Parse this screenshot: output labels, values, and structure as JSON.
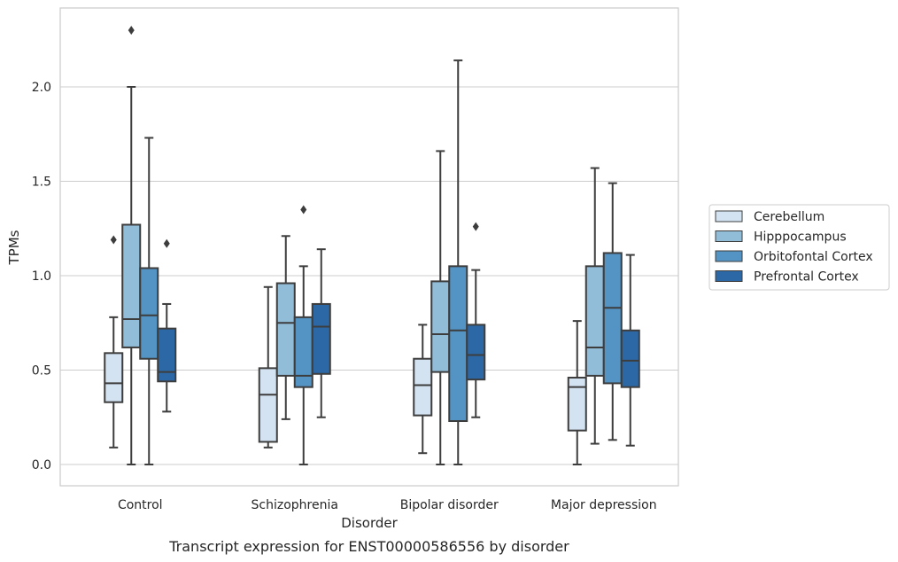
{
  "chart_data": {
    "type": "box",
    "title": "",
    "caption": "Transcript expression for ENST00000586556 by disorder",
    "xlabel": "Disorder",
    "ylabel": "TPMs",
    "ylim": [
      -0.11,
      2.41
    ],
    "yticks": [
      "0.0",
      "0.5",
      "1.0",
      "1.5",
      "2.0"
    ],
    "grid": "horizontal",
    "legend_position": "right",
    "categories": [
      "Control",
      "Schizophrenia",
      "Bipolar disorder",
      "Major depression"
    ],
    "series": [
      {
        "name": "Cerebellum",
        "color": "#d4e3f2",
        "boxes": [
          {
            "min": 0.09,
            "q1": 0.33,
            "median": 0.43,
            "q3": 0.59,
            "max": 0.78,
            "outliers": [
              1.19
            ]
          },
          {
            "min": 0.09,
            "q1": 0.12,
            "median": 0.37,
            "q3": 0.51,
            "max": 0.94,
            "outliers": []
          },
          {
            "min": 0.06,
            "q1": 0.26,
            "median": 0.42,
            "q3": 0.56,
            "max": 0.74,
            "outliers": []
          },
          {
            "min": 0.0,
            "q1": 0.18,
            "median": 0.41,
            "q3": 0.46,
            "max": 0.76,
            "outliers": []
          }
        ]
      },
      {
        "name": "Hipppocampus",
        "color": "#92bdd9",
        "boxes": [
          {
            "min": 0.0,
            "q1": 0.62,
            "median": 0.77,
            "q3": 1.27,
            "max": 2.0,
            "outliers": [
              2.3
            ]
          },
          {
            "min": 0.24,
            "q1": 0.47,
            "median": 0.75,
            "q3": 0.96,
            "max": 1.21,
            "outliers": []
          },
          {
            "min": 0.0,
            "q1": 0.49,
            "median": 0.69,
            "q3": 0.97,
            "max": 1.66,
            "outliers": []
          },
          {
            "min": 0.11,
            "q1": 0.47,
            "median": 0.62,
            "q3": 1.05,
            "max": 1.57,
            "outliers": []
          }
        ]
      },
      {
        "name": "Orbitofontal Cortex",
        "color": "#5394c4",
        "boxes": [
          {
            "min": 0.0,
            "q1": 0.56,
            "median": 0.79,
            "q3": 1.04,
            "max": 1.73,
            "outliers": []
          },
          {
            "min": 0.0,
            "q1": 0.41,
            "median": 0.47,
            "q3": 0.78,
            "max": 1.05,
            "outliers": [
              1.35
            ]
          },
          {
            "min": 0.0,
            "q1": 0.23,
            "median": 0.71,
            "q3": 1.05,
            "max": 2.14,
            "outliers": []
          },
          {
            "min": 0.13,
            "q1": 0.43,
            "median": 0.83,
            "q3": 1.12,
            "max": 1.49,
            "outliers": []
          }
        ]
      },
      {
        "name": "Prefrontal Cortex",
        "color": "#2c68a6",
        "boxes": [
          {
            "min": 0.28,
            "q1": 0.44,
            "median": 0.49,
            "q3": 0.72,
            "max": 0.85,
            "outliers": [
              1.17
            ]
          },
          {
            "min": 0.25,
            "q1": 0.48,
            "median": 0.73,
            "q3": 0.85,
            "max": 1.14,
            "outliers": []
          },
          {
            "min": 0.25,
            "q1": 0.45,
            "median": 0.58,
            "q3": 0.74,
            "max": 1.03,
            "outliers": [
              1.26
            ]
          },
          {
            "min": 0.1,
            "q1": 0.41,
            "median": 0.55,
            "q3": 0.71,
            "max": 1.11,
            "outliers": []
          }
        ]
      }
    ]
  }
}
